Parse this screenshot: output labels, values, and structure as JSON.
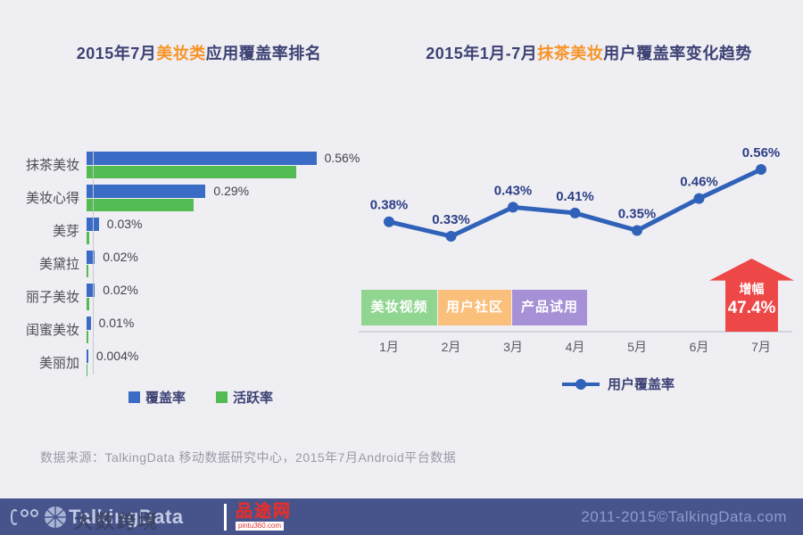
{
  "titles": {
    "left": {
      "prefix": "2015年7月",
      "highlight": "美妆类",
      "suffix": "应用覆盖率排名"
    },
    "right": {
      "prefix": "2015年1月-7月",
      "highlight": "抹茶美妆",
      "suffix": "用户覆盖率变化趋势"
    }
  },
  "chart_data": [
    {
      "type": "bar",
      "orientation": "horizontal",
      "title": "2015年7月美妆类应用覆盖率排名",
      "categories": [
        "抹茶美妆",
        "美妆心得",
        "美芽",
        "美黛拉",
        "丽子美妆",
        "闺蜜美妆",
        "美丽加"
      ],
      "series": [
        {
          "name": "覆盖率",
          "color": "#3a6bc5",
          "values": [
            0.56,
            0.29,
            0.03,
            0.02,
            0.02,
            0.01,
            0.004
          ],
          "labels": [
            "0.56%",
            "0.29%",
            "0.03%",
            "0.02%",
            "0.02%",
            "0.01%",
            "0.004%"
          ]
        },
        {
          "name": "活跃率",
          "color": "#52bb52",
          "values": [
            0.51,
            0.26,
            0.006,
            0.005,
            0.006,
            0.004,
            0.001
          ],
          "labels": null,
          "note": "values estimated from bar lengths, not labeled in chart"
        }
      ],
      "value_unit": "%",
      "xlim": [
        0,
        0.6
      ],
      "legend_position": "bottom",
      "grid": false
    },
    {
      "type": "line",
      "title": "2015年1月-7月抹茶美妆用户覆盖率变化趋势",
      "x": [
        "1月",
        "2月",
        "3月",
        "4月",
        "5月",
        "6月",
        "7月"
      ],
      "series": [
        {
          "name": "用户覆盖率",
          "color": "#2f62b8",
          "values": [
            0.38,
            0.33,
            0.43,
            0.41,
            0.35,
            0.46,
            0.56
          ],
          "labels": [
            "0.38%",
            "0.33%",
            "0.43%",
            "0.41%",
            "0.35%",
            "0.46%",
            "0.56%"
          ]
        }
      ],
      "value_unit": "%",
      "ylim": [
        0.25,
        0.62
      ],
      "legend_position": "bottom",
      "grid": false,
      "annotations": {
        "phase_boxes": [
          {
            "label": "美妆视频",
            "color": "#90d690"
          },
          {
            "label": "用户社区",
            "color": "#fbbf7c"
          },
          {
            "label": "产品试用",
            "color": "#a791d6"
          }
        ],
        "growth_arrow": {
          "label": "增幅",
          "value": "47.4%",
          "color": "#ee4747",
          "at_x": "7月"
        }
      }
    }
  ],
  "source_note": "数据来源：TalkingData 移动数据研究中心，2015年7月Android平台数据",
  "footer": {
    "talkingdata_logo": "TalkingData",
    "watermark": "大数跨境",
    "pintu_logo": "品途网",
    "pintu_domain": "pintu360.com",
    "copyright": "2011-2015©TalkingData.com"
  },
  "colors": {
    "bg": "#efeef3",
    "navy": "#3d4274",
    "orange": "#f79428",
    "bar-blue": "#3a6bc5",
    "bar-green": "#52bb52",
    "line-blue": "#2f62b8",
    "value-navy": "#2c3e86",
    "cat-gray": "#4c4c56",
    "month-gray": "#5a5a64",
    "arrow-red": "#ee4747",
    "source-gray": "#9b99a6",
    "footer-bg": "#47548c",
    "footer-text": "#8a9bce",
    "axis-gray": "#c6c6cf"
  }
}
